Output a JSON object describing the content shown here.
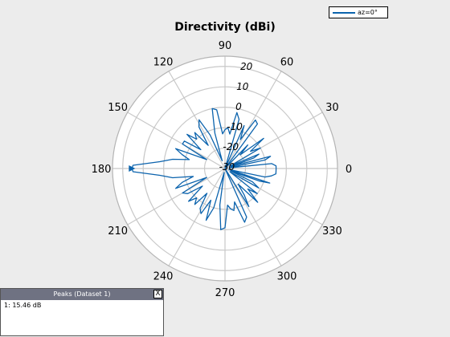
{
  "chart_data": {
    "type": "polar-line",
    "title": "Directivity (dBi)",
    "angle_ticks": [
      0,
      30,
      60,
      90,
      120,
      150,
      180,
      210,
      240,
      270,
      300,
      330
    ],
    "radial_ticks": [
      -30,
      -20,
      -10,
      0,
      10,
      20
    ],
    "rlim": [
      -30,
      25
    ],
    "grid": true,
    "legend_position": "top-right",
    "series": [
      {
        "name": "az=0°",
        "color": "#0b63ad",
        "angles": [
          0,
          3,
          6,
          9,
          12,
          15,
          18,
          20,
          23,
          26,
          30,
          34,
          38,
          42,
          46,
          50,
          54,
          58,
          62,
          66,
          70,
          74,
          78,
          82,
          86,
          90,
          94,
          98,
          102,
          106,
          110,
          114,
          118,
          122,
          126,
          130,
          134,
          138,
          142,
          146,
          150,
          154,
          158,
          162,
          166,
          170,
          174,
          178,
          180,
          182,
          186,
          190,
          194,
          198,
          202,
          206,
          210,
          214,
          218,
          222,
          226,
          230,
          234,
          238,
          242,
          246,
          250,
          254,
          258,
          262,
          266,
          270,
          274,
          278,
          282,
          286,
          290,
          294,
          298,
          302,
          306,
          310,
          314,
          318,
          322,
          326,
          330,
          334,
          337,
          340,
          342,
          345,
          348,
          351,
          354,
          357
        ],
        "values": [
          -5,
          -5,
          -7,
          -28,
          -10,
          -7,
          -27,
          -15,
          -12,
          -27,
          -10,
          -15,
          -6,
          -20,
          -14,
          -30,
          -3,
          -2,
          -14,
          -7,
          -30,
          -5,
          -2,
          -13,
          -10,
          -11,
          -13,
          -1,
          0,
          -12,
          -26,
          -12,
          -3,
          -6,
          -16,
          -7,
          -10,
          -5,
          -15,
          -6,
          -6,
          -20,
          -4,
          -8,
          -12,
          -4,
          2,
          15,
          15.46,
          15,
          2,
          -4,
          -14,
          -8,
          -4,
          -20,
          -6,
          -8,
          -16,
          -6,
          -10,
          -7,
          -15,
          -7,
          -5,
          -13,
          -3,
          -10,
          -28,
          -12,
          0,
          -1,
          -12,
          -10,
          -9,
          -13,
          -2,
          -4,
          -30,
          -8,
          -14,
          -20,
          -7,
          -15,
          -10,
          -27,
          -11,
          -15,
          -27,
          -12,
          -7,
          -28,
          -10,
          -7,
          -5,
          -5
        ]
      }
    ]
  },
  "peaks_panel": {
    "title": "Peaks (Dataset 1)",
    "close": "X",
    "entry": "1: 15.46 dB"
  }
}
